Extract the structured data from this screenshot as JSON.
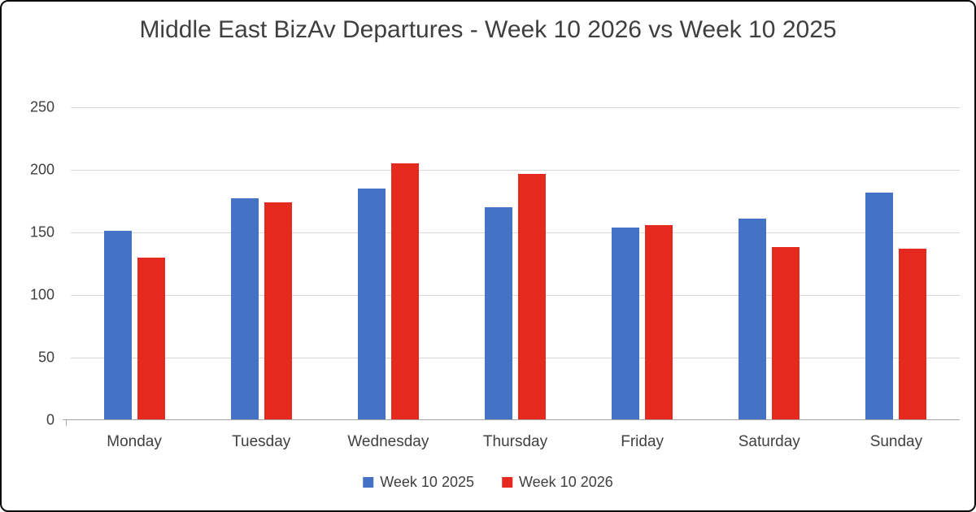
{
  "chart_data": {
    "type": "bar",
    "title": "Middle East BizAv Departures - Week 10 2026 vs Week 10 2025",
    "categories": [
      "Monday",
      "Tuesday",
      "Wednesday",
      "Thursday",
      "Friday",
      "Saturday",
      "Sunday"
    ],
    "series": [
      {
        "name": "Week 10 2025",
        "color": "#4472C4",
        "values": [
          151,
          177,
          185,
          170,
          154,
          161,
          182
        ]
      },
      {
        "name": "Week 10 2026",
        "color": "#E5291E",
        "values": [
          130,
          174,
          205,
          197,
          156,
          138,
          137
        ]
      }
    ],
    "ylim": [
      0,
      250
    ],
    "yticks": [
      0,
      50,
      100,
      150,
      200,
      250
    ],
    "grid": true,
    "legend_position": "bottom",
    "xlabel": "",
    "ylabel": ""
  },
  "colors": {
    "title_text": "#3F3F3F",
    "axis_text": "#404040",
    "gridline": "#D8D8D8",
    "axis_line": "#A6A6A6",
    "background": "#FFFFFF",
    "border": "#0A0A0A"
  }
}
